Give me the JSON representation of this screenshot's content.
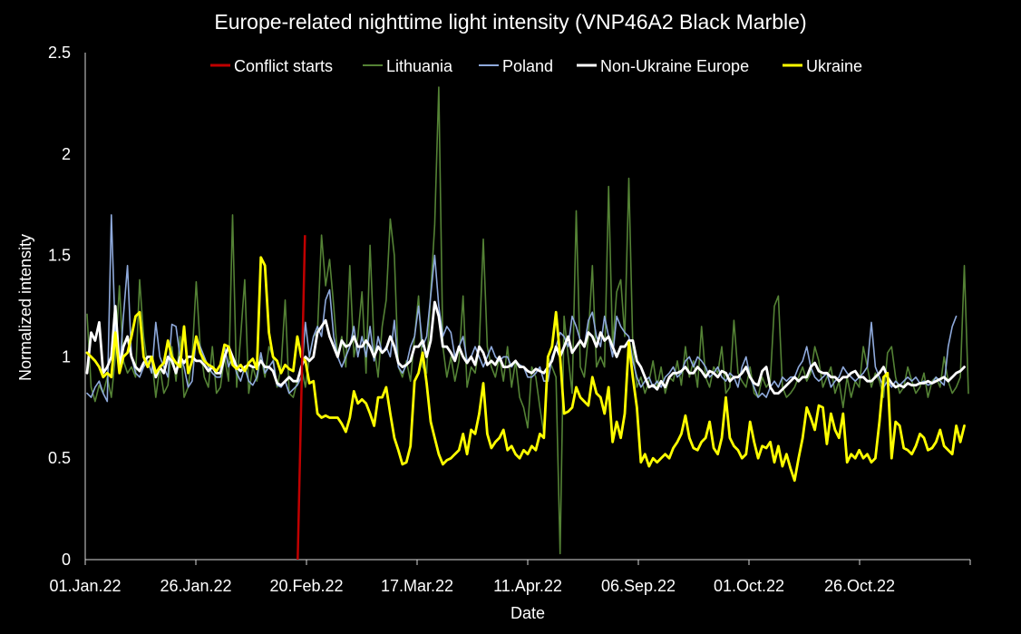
{
  "chart_data": {
    "type": "line",
    "title": "Europe-related nighttime light intensity (VNP46A2 Black Marble)",
    "xlabel": "Date",
    "ylabel": "Normalized intensity",
    "ylim": [
      0,
      2.5
    ],
    "yticks": [
      "0",
      "0.5",
      "1",
      "1.5",
      "2",
      "2.5"
    ],
    "xtick_labels": [
      "01.Jan.22",
      "26.Jan.22",
      "20.Feb.22",
      "17.Mar.22",
      "11.Apr.22",
      "06.Sep.22",
      "01.Oct.22",
      "26.Oct.22"
    ],
    "grid": false,
    "legend_position": "top",
    "legend": [
      {
        "name": "Conflict starts",
        "color": "#c00000"
      },
      {
        "name": "Lithuania",
        "color": "#548235"
      },
      {
        "name": "Poland",
        "color": "#8faadc"
      },
      {
        "name": "Non-Ukraine Europe",
        "color": "#ffffff"
      },
      {
        "name": "Ukraine",
        "color": "#ffff00"
      }
    ],
    "conflict_marker": {
      "x_index": 53,
      "y_range": [
        0,
        1.6
      ]
    },
    "series": [
      {
        "name": "Lithuania",
        "color": "#548235",
        "values": [
          1.21,
          0.85,
          0.78,
          0.86,
          0.82,
          0.9,
          0.8,
          1.0,
          1.35,
          0.98,
          0.92,
          0.95,
          0.9,
          1.38,
          1.1,
          0.95,
          1.0,
          0.8,
          0.95,
          0.82,
          0.86,
          1.05,
          0.88,
          1.1,
          0.8,
          0.85,
          1.0,
          1.37,
          1.05,
          0.9,
          0.85,
          1.05,
          0.82,
          0.85,
          1.0,
          0.88,
          1.7,
          0.85,
          1.1,
          1.38,
          0.82,
          0.95,
          0.88,
          1.0,
          0.9,
          1.05,
          1.0,
          0.85,
          0.95,
          1.28,
          0.82,
          0.8,
          0.88,
          0.95,
          0.85,
          1.0,
          1.1,
          1.12,
          1.6,
          1.35,
          1.48,
          1.25,
          1.0,
          1.1,
          0.95,
          1.45,
          1.0,
          1.1,
          1.32,
          0.92,
          1.55,
          1.05,
          0.9,
          1.15,
          1.28,
          1.68,
          1.5,
          0.95,
          0.9,
          0.98,
          0.88,
          1.1,
          1.3,
          0.95,
          0.92,
          1.32,
          1.65,
          2.33,
          1.05,
          0.9,
          1.0,
          0.88,
          0.98,
          1.3,
          0.85,
          0.95,
          0.92,
          1.05,
          1.58,
          1.05,
          0.95,
          0.9,
          1.0,
          0.88,
          1.05,
          0.85,
          0.98,
          0.8,
          0.75,
          0.65,
          0.95,
          0.9,
          0.75,
          0.62,
          1.0,
          0.95,
          0.9,
          0.03,
          1.2,
          1.0,
          0.82,
          1.72,
          0.95,
          0.9,
          1.1,
          1.45,
          0.95,
          1.0,
          0.95,
          1.84,
          1.05,
          1.32,
          1.38,
          1.1,
          1.88,
          1.05,
          0.85,
          0.9,
          0.82,
          0.88,
          0.98,
          0.85,
          0.95,
          0.82,
          0.9,
          0.88,
          0.98,
          0.86,
          1.05,
          0.9,
          0.98,
          0.85,
          1.15,
          0.9,
          0.85,
          0.95,
          0.92,
          1.05,
          0.82,
          0.85,
          1.18,
          0.92,
          0.88,
          0.85,
          0.95,
          0.82,
          0.8,
          0.9,
          0.85,
          0.88,
          1.25,
          1.3,
          0.85,
          0.8,
          0.82,
          0.85,
          0.9,
          0.95,
          0.88,
          0.92,
          1.05,
          0.98,
          0.85,
          0.9,
          0.95,
          0.82,
          0.88,
          0.75,
          0.9,
          0.8,
          0.88,
          0.85,
          1.05,
          0.95,
          0.85,
          0.92,
          0.88,
          0.8,
          1.02,
          1.05,
          0.9,
          0.82,
          0.85,
          0.95,
          0.88,
          0.82,
          0.85,
          0.92,
          0.8,
          0.88,
          0.9,
          0.85,
          1.0,
          0.88,
          0.82,
          0.85,
          0.9,
          1.45,
          0.82
        ]
      },
      {
        "name": "Poland",
        "color": "#8faadc",
        "values": [
          0.82,
          0.8,
          0.85,
          0.88,
          0.82,
          0.78,
          1.7,
          1.1,
          0.92,
          1.2,
          1.45,
          1.0,
          0.92,
          0.9,
          0.95,
          0.98,
          0.92,
          1.17,
          1.0,
          0.95,
          0.9,
          1.16,
          1.15,
          1.0,
          0.95,
          0.85,
          0.88,
          1.1,
          1.05,
          1.0,
          0.95,
          0.92,
          0.9,
          0.9,
          1.05,
          0.95,
          1.0,
          0.92,
          0.88,
          0.95,
          0.88,
          0.86,
          0.9,
          1.02,
          0.92,
          0.95,
          0.98,
          0.86,
          0.85,
          0.88,
          0.82,
          0.84,
          0.86,
          0.9,
          1.17,
          1.0,
          1.1,
          1.15,
          1.1,
          1.28,
          1.33,
          1.1,
          1.0,
          0.95,
          1.0,
          1.05,
          1.15,
          1.0,
          1.1,
          1.0,
          1.15,
          0.98,
          1.1,
          1.02,
          1.05,
          1.0,
          1.18,
          0.95,
          0.92,
          0.96,
          1.05,
          1.1,
          1.25,
          1.05,
          1.1,
          1.3,
          1.5,
          1.25,
          1.1,
          1.15,
          1.12,
          1.0,
          1.05,
          1.1,
          0.98,
          1.0,
          1.05,
          1.0,
          0.95,
          1.0,
          1.05,
          1.0,
          0.98,
          1.0,
          1.0,
          0.95,
          0.98,
          0.96,
          0.95,
          0.9,
          0.9,
          0.92,
          0.95,
          0.88,
          0.88,
          1.0,
          1.05,
          1.12,
          1.1,
          1.05,
          1.2,
          1.15,
          1.08,
          1.05,
          1.18,
          1.22,
          1.1,
          1.05,
          1.2,
          1.1,
          1.0,
          1.2,
          1.15,
          1.12,
          1.1,
          0.98,
          0.9,
          0.85,
          0.88,
          0.9,
          0.85,
          0.88,
          0.85,
          0.9,
          0.92,
          0.95,
          0.9,
          0.92,
          0.98,
          1.0,
          0.95,
          1.0,
          0.98,
          0.95,
          0.9,
          0.92,
          0.95,
          0.9,
          0.88,
          0.92,
          0.9,
          0.85,
          0.95,
          1.0,
          0.9,
          0.85,
          0.8,
          0.82,
          0.8,
          0.85,
          0.88,
          0.85,
          0.9,
          0.88,
          0.9,
          0.9,
          0.95,
          0.98,
          1.05,
          0.95,
          0.9,
          0.88,
          0.9,
          0.92,
          0.85,
          0.88,
          0.9,
          0.95,
          0.92,
          0.9,
          0.88,
          0.9,
          0.92,
          0.95,
          1.17,
          0.95,
          0.9,
          0.85,
          0.88,
          0.85,
          0.88,
          0.86,
          0.88,
          0.9,
          0.88,
          0.9,
          0.87,
          0.88,
          0.86,
          0.87,
          0.9,
          0.88,
          0.86,
          1.05,
          1.15,
          1.2
        ]
      },
      {
        "name": "Non-Ukraine Europe",
        "color": "#ffffff",
        "values": [
          0.92,
          1.12,
          1.08,
          1.17,
          0.92,
          0.95,
          1.0,
          1.25,
          0.95,
          1.05,
          1.1,
          1.0,
          0.95,
          0.93,
          0.97,
          1.0,
          1.0,
          0.9,
          0.95,
          0.92,
          1.0,
          0.98,
          0.92,
          1.0,
          0.97,
          1.0,
          1.0,
          0.98,
          0.98,
          0.96,
          0.93,
          0.95,
          0.92,
          0.92,
          1.0,
          1.05,
          1.0,
          0.95,
          0.93,
          0.95,
          0.96,
          0.95,
          0.95,
          0.98,
          0.95,
          0.95,
          0.93,
          0.87,
          0.86,
          0.88,
          0.9,
          0.88,
          0.88,
          0.95,
          1.0,
          0.98,
          1.0,
          1.12,
          1.15,
          1.18,
          1.1,
          1.05,
          1.0,
          1.08,
          1.05,
          1.06,
          1.1,
          1.05,
          1.05,
          1.08,
          1.05,
          1.0,
          1.05,
          1.02,
          1.04,
          1.1,
          1.05,
          0.97,
          0.95,
          0.96,
          0.98,
          1.05,
          1.05,
          1.08,
          1.0,
          1.08,
          1.27,
          1.2,
          1.05,
          1.05,
          1.02,
          0.98,
          1.05,
          1.0,
          0.97,
          1.0,
          0.96,
          1.05,
          1.02,
          0.96,
          0.98,
          0.96,
          1.0,
          0.95,
          0.95,
          0.96,
          0.98,
          0.95,
          0.95,
          0.93,
          0.92,
          0.94,
          0.93,
          0.92,
          0.95,
          0.98,
          1.05,
          1.0,
          1.05,
          1.1,
          1.02,
          1.05,
          1.08,
          1.05,
          1.12,
          1.1,
          1.05,
          1.12,
          1.08,
          1.1,
          1.05,
          1.0,
          1.05,
          1.05,
          1.08,
          1.08,
          0.98,
          0.95,
          0.9,
          0.85,
          0.86,
          0.84,
          0.88,
          0.85,
          0.9,
          0.92,
          0.92,
          0.93,
          0.95,
          0.92,
          0.92,
          0.95,
          0.93,
          0.9,
          0.93,
          0.92,
          0.9,
          0.93,
          0.92,
          0.88,
          0.9,
          0.9,
          0.92,
          0.95,
          0.9,
          0.87,
          0.86,
          0.93,
          0.95,
          0.85,
          0.82,
          0.82,
          0.84,
          0.86,
          0.88,
          0.9,
          0.88,
          0.9,
          0.9,
          0.95,
          0.97,
          0.93,
          0.92,
          0.92,
          0.9,
          0.9,
          0.88,
          0.9,
          0.9,
          0.92,
          0.93,
          0.9,
          0.9,
          0.88,
          0.88,
          0.9,
          0.92,
          0.95,
          0.9,
          0.87,
          0.85,
          0.86,
          0.85,
          0.87,
          0.86,
          0.86,
          0.87,
          0.87,
          0.88,
          0.87,
          0.88,
          0.89,
          0.9,
          0.88,
          0.9,
          0.92,
          0.93,
          0.95
        ]
      },
      {
        "name": "Ukraine",
        "color": "#ffff00",
        "values": [
          1.02,
          1.0,
          0.98,
          0.95,
          0.9,
          0.92,
          0.9,
          1.12,
          0.92,
          1.0,
          1.02,
          1.1,
          1.2,
          1.22,
          1.0,
          0.95,
          1.0,
          0.92,
          0.95,
          0.97,
          1.08,
          1.0,
          0.97,
          0.95,
          1.15,
          0.92,
          0.98,
          1.1,
          1.02,
          0.98,
          0.96,
          0.95,
          0.93,
          0.96,
          1.06,
          1.05,
          0.96,
          0.94,
          0.96,
          0.93,
          0.97,
          0.99,
          0.94,
          1.49,
          1.45,
          1.12,
          1.0,
          0.98,
          0.92,
          0.96,
          0.94,
          0.93,
          1.1,
          1.0,
          0.98,
          0.87,
          0.88,
          0.72,
          0.7,
          0.71,
          0.7,
          0.7,
          0.7,
          0.67,
          0.63,
          0.7,
          0.83,
          0.77,
          0.79,
          0.77,
          0.72,
          0.66,
          0.8,
          0.8,
          0.85,
          0.72,
          0.6,
          0.54,
          0.47,
          0.48,
          0.56,
          0.88,
          0.92,
          1.02,
          0.87,
          0.68,
          0.6,
          0.52,
          0.47,
          0.49,
          0.5,
          0.52,
          0.54,
          0.62,
          0.52,
          0.64,
          0.62,
          0.72,
          0.87,
          0.62,
          0.55,
          0.58,
          0.6,
          0.64,
          0.54,
          0.56,
          0.52,
          0.5,
          0.54,
          0.52,
          0.56,
          0.54,
          0.62,
          0.6,
          1.0,
          1.05,
          1.22,
          1.0,
          0.72,
          0.73,
          0.75,
          0.85,
          0.8,
          0.78,
          0.76,
          0.9,
          0.82,
          0.8,
          0.72,
          0.85,
          0.58,
          0.68,
          0.6,
          0.72,
          1.07,
          0.9,
          0.75,
          0.48,
          0.52,
          0.46,
          0.5,
          0.48,
          0.5,
          0.52,
          0.5,
          0.55,
          0.58,
          0.62,
          0.71,
          0.6,
          0.55,
          0.54,
          0.58,
          0.6,
          0.68,
          0.55,
          0.52,
          0.6,
          0.8,
          0.6,
          0.56,
          0.54,
          0.5,
          0.52,
          0.68,
          0.58,
          0.5,
          0.56,
          0.55,
          0.58,
          0.48,
          0.56,
          0.46,
          0.52,
          0.45,
          0.39,
          0.5,
          0.6,
          0.75,
          0.7,
          0.64,
          0.76,
          0.75,
          0.57,
          0.72,
          0.64,
          0.6,
          0.72,
          0.48,
          0.52,
          0.5,
          0.54,
          0.5,
          0.52,
          0.48,
          0.5,
          0.68,
          0.9,
          0.92,
          0.5,
          0.68,
          0.66,
          0.55,
          0.54,
          0.52,
          0.56,
          0.62,
          0.6,
          0.54,
          0.55,
          0.58,
          0.64,
          0.56,
          0.54,
          0.52,
          0.66,
          0.58,
          0.66
        ]
      }
    ]
  }
}
